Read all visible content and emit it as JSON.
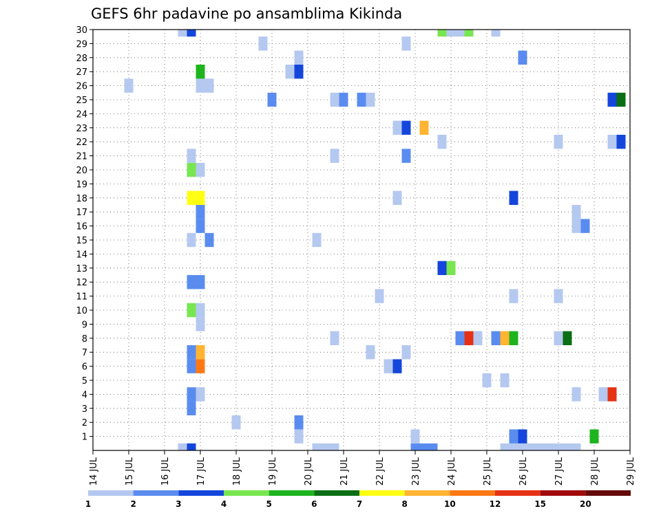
{
  "chart_data": {
    "type": "heatmap",
    "title": "GEFS 6hr padavine po ansamblima Kikinda",
    "x_tick_labels": [
      "14 JUL",
      "15 JUL",
      "16 JUL",
      "17 JUL",
      "18 JUL",
      "19 JUL",
      "20 JUL",
      "21 JUL",
      "22 JUL",
      "23 JUL",
      "24 JUL",
      "25 JUL",
      "26 JUL",
      "27 JUL",
      "28 JUL",
      "29 JUL"
    ],
    "xlim": [
      0,
      60
    ],
    "y_tick_labels": [
      "1",
      "2",
      "3",
      "4",
      "5",
      "6",
      "7",
      "8",
      "9",
      "10",
      "11",
      "12",
      "13",
      "14",
      "15",
      "16",
      "17",
      "18",
      "19",
      "20",
      "21",
      "22",
      "23",
      "24",
      "25",
      "26",
      "27",
      "28",
      "29",
      "30"
    ],
    "ylim": [
      0,
      30
    ],
    "grid": true,
    "legend": {
      "position": "bottom",
      "bounds": [
        "1",
        "2",
        "3",
        "4",
        "5",
        "6",
        "7",
        "8",
        "10",
        "12",
        "15",
        "20"
      ],
      "colors": [
        "#b4c8f0",
        "#5a8cf0",
        "#1446dc",
        "#78e650",
        "#1eb41e",
        "#0a6e14",
        "#ffff14",
        "#ffb432",
        "#ff7814",
        "#e63214",
        "#a00a0a",
        "#640a0a"
      ]
    },
    "cells": [
      {
        "m": 0,
        "t": [
          [
            10,
            1,
            0
          ],
          [
            11,
            1,
            2
          ],
          [
            25,
            1,
            0
          ],
          [
            26,
            1,
            0
          ],
          [
            27,
            1,
            0
          ],
          [
            36,
            1,
            1
          ],
          [
            37,
            1,
            1
          ],
          [
            38,
            1,
            1
          ],
          [
            46,
            1,
            0
          ],
          [
            47,
            1,
            0
          ],
          [
            48,
            1,
            0
          ],
          [
            49,
            1,
            0
          ],
          [
            50,
            1,
            0
          ],
          [
            51,
            1,
            0
          ],
          [
            52,
            1,
            0
          ],
          [
            53,
            1,
            0
          ],
          [
            54,
            1,
            0
          ]
        ]
      },
      {
        "m": 1,
        "t": [
          [
            23,
            1,
            0
          ],
          [
            36,
            1,
            0
          ],
          [
            47,
            1,
            1
          ],
          [
            48,
            1,
            2
          ],
          [
            56,
            1,
            4
          ]
        ]
      },
      {
        "m": 2,
        "t": [
          [
            16,
            1,
            0
          ],
          [
            23,
            1,
            1
          ]
        ]
      },
      {
        "m": 3,
        "t": [
          [
            11,
            1,
            1
          ]
        ]
      },
      {
        "m": 4,
        "t": [
          [
            11,
            1,
            1
          ],
          [
            12,
            1,
            0
          ],
          [
            54,
            1,
            0
          ],
          [
            57,
            1,
            0
          ],
          [
            58,
            1,
            9
          ]
        ]
      },
      {
        "m": 5,
        "t": [
          [
            44,
            1,
            0
          ],
          [
            46,
            1,
            0
          ]
        ]
      },
      {
        "m": 6,
        "t": [
          [
            11,
            1,
            1
          ],
          [
            12,
            1,
            8
          ],
          [
            33,
            1,
            0
          ],
          [
            34,
            1,
            2
          ]
        ]
      },
      {
        "m": 7,
        "t": [
          [
            11,
            1,
            1
          ],
          [
            12,
            1,
            7
          ],
          [
            31,
            1,
            0
          ],
          [
            35,
            1,
            0
          ]
        ]
      },
      {
        "m": 8,
        "t": [
          [
            27,
            1,
            0
          ],
          [
            41,
            1,
            1
          ],
          [
            42,
            1,
            9
          ],
          [
            43,
            1,
            0
          ],
          [
            45,
            1,
            1
          ],
          [
            46,
            1,
            7
          ],
          [
            47,
            1,
            4
          ],
          [
            52,
            1,
            0
          ],
          [
            53,
            1,
            5
          ]
        ]
      },
      {
        "m": 9,
        "t": [
          [
            12,
            1,
            0
          ]
        ]
      },
      {
        "m": 10,
        "t": [
          [
            11,
            1,
            3
          ],
          [
            12,
            1,
            0
          ]
        ]
      },
      {
        "m": 11,
        "t": [
          [
            32,
            1,
            0
          ],
          [
            47,
            1,
            0
          ],
          [
            52,
            1,
            0
          ]
        ]
      },
      {
        "m": 12,
        "t": [
          [
            11,
            1,
            1
          ],
          [
            12,
            1,
            1
          ]
        ]
      },
      {
        "m": 13,
        "t": [
          [
            39,
            1,
            2
          ],
          [
            40,
            1,
            3
          ]
        ]
      },
      {
        "m": 15,
        "t": [
          [
            11,
            1,
            0
          ],
          [
            13,
            1,
            1
          ],
          [
            25,
            1,
            0
          ]
        ]
      },
      {
        "m": 16,
        "t": [
          [
            12,
            1,
            1
          ],
          [
            54,
            1,
            0
          ],
          [
            55,
            1,
            1
          ]
        ]
      },
      {
        "m": 17,
        "t": [
          [
            12,
            1,
            1
          ],
          [
            54,
            1,
            0
          ]
        ]
      },
      {
        "m": 18,
        "t": [
          [
            11,
            1,
            6
          ],
          [
            12,
            1,
            6
          ],
          [
            34,
            1,
            0
          ],
          [
            47,
            1,
            2
          ]
        ]
      },
      {
        "m": 20,
        "t": [
          [
            11,
            1,
            3
          ],
          [
            12,
            1,
            0
          ]
        ]
      },
      {
        "m": 21,
        "t": [
          [
            11,
            1,
            0
          ],
          [
            27,
            1,
            0
          ],
          [
            35,
            1,
            1
          ]
        ]
      },
      {
        "m": 22,
        "t": [
          [
            39,
            1,
            0
          ],
          [
            52,
            1,
            0
          ],
          [
            58,
            1,
            0
          ],
          [
            59,
            1,
            2
          ]
        ]
      },
      {
        "m": 23,
        "t": [
          [
            34,
            1,
            0
          ],
          [
            35,
            1,
            2
          ],
          [
            37,
            1,
            7
          ]
        ]
      },
      {
        "m": 25,
        "t": [
          [
            20,
            1,
            1
          ],
          [
            27,
            1,
            0
          ],
          [
            28,
            1,
            1
          ],
          [
            30,
            1,
            1
          ],
          [
            31,
            1,
            0
          ],
          [
            58,
            1,
            2
          ],
          [
            59,
            1,
            5
          ]
        ]
      },
      {
        "m": 26,
        "t": [
          [
            4,
            1,
            0
          ],
          [
            12,
            1,
            0
          ],
          [
            13,
            1,
            0
          ]
        ]
      },
      {
        "m": 27,
        "t": [
          [
            22,
            1,
            0
          ],
          [
            23,
            1,
            2
          ],
          [
            12,
            1,
            4
          ]
        ]
      },
      {
        "m": 28,
        "t": [
          [
            23,
            1,
            0
          ],
          [
            48,
            1,
            1
          ]
        ]
      },
      {
        "m": 29,
        "t": [
          [
            19,
            1,
            0
          ],
          [
            35,
            1,
            0
          ]
        ]
      },
      {
        "m": 30,
        "t": [
          [
            10,
            1,
            0
          ],
          [
            11,
            1,
            2
          ],
          [
            39,
            1,
            3
          ],
          [
            40,
            1,
            0
          ],
          [
            41,
            1,
            0
          ],
          [
            42,
            1,
            3
          ],
          [
            45,
            1,
            0
          ]
        ]
      }
    ]
  }
}
